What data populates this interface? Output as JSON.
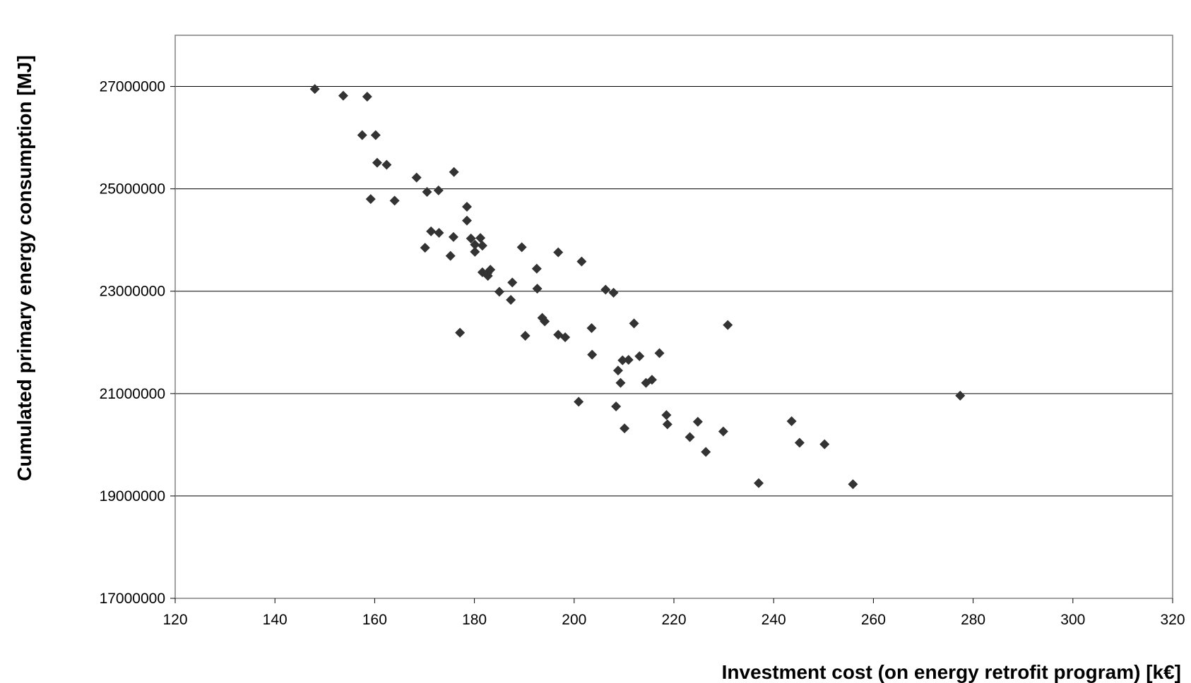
{
  "chart_data": {
    "type": "scatter",
    "title": "",
    "xlabel": "Investment cost (on energy retrofit program) [k€]",
    "ylabel": "Cumulated primary energy consumption [MJ]",
    "xlim": [
      120,
      320
    ],
    "ylim": [
      17000000,
      28000000
    ],
    "xticks": [
      120,
      140,
      160,
      180,
      200,
      220,
      240,
      260,
      280,
      300,
      320
    ],
    "yticks": [
      17000000,
      19000000,
      21000000,
      23000000,
      25000000,
      27000000
    ],
    "grid": "horizontal",
    "legend": "none",
    "marker": "diamond",
    "marker_color": "#333333",
    "series": [
      {
        "points": [
          [
            148,
            26950000
          ],
          [
            153.7,
            26820000
          ],
          [
            158.5,
            26800000
          ],
          [
            157.5,
            26050000
          ],
          [
            160.2,
            26050000
          ],
          [
            160.5,
            25510000
          ],
          [
            162.4,
            25470000
          ],
          [
            159.2,
            24800000
          ],
          [
            164.0,
            24770000
          ],
          [
            168.4,
            25220000
          ],
          [
            170.5,
            24940000
          ],
          [
            172.8,
            24970000
          ],
          [
            175.9,
            25330000
          ],
          [
            178.5,
            24650000
          ],
          [
            178.5,
            24380000
          ],
          [
            171.3,
            24170000
          ],
          [
            172.9,
            24140000
          ],
          [
            170.1,
            23850000
          ],
          [
            175.2,
            23690000
          ],
          [
            175.8,
            24060000
          ],
          [
            179.3,
            24030000
          ],
          [
            181.2,
            24040000
          ],
          [
            180.1,
            23910000
          ],
          [
            181.6,
            23890000
          ],
          [
            180.1,
            23770000
          ],
          [
            189.5,
            23860000
          ],
          [
            196.8,
            23760000
          ],
          [
            181.6,
            23370000
          ],
          [
            182.6,
            23350000
          ],
          [
            183.2,
            23420000
          ],
          [
            182.7,
            23300000
          ],
          [
            187.6,
            23170000
          ],
          [
            185.0,
            22990000
          ],
          [
            187.3,
            22830000
          ],
          [
            192.5,
            23440000
          ],
          [
            192.6,
            23050000
          ],
          [
            201.5,
            23580000
          ],
          [
            206.3,
            23030000
          ],
          [
            207.9,
            22970000
          ],
          [
            193.6,
            22480000
          ],
          [
            194.1,
            22410000
          ],
          [
            177.1,
            22190000
          ],
          [
            190.2,
            22130000
          ],
          [
            196.8,
            22150000
          ],
          [
            198.2,
            22100000
          ],
          [
            203.5,
            22280000
          ],
          [
            212.0,
            22370000
          ],
          [
            230.8,
            22340000
          ],
          [
            203.6,
            21760000
          ],
          [
            213.1,
            21730000
          ],
          [
            217.1,
            21790000
          ],
          [
            209.7,
            21650000
          ],
          [
            210.9,
            21660000
          ],
          [
            208.8,
            21450000
          ],
          [
            209.3,
            21210000
          ],
          [
            214.4,
            21210000
          ],
          [
            215.6,
            21270000
          ],
          [
            200.9,
            20840000
          ],
          [
            208.4,
            20750000
          ],
          [
            218.5,
            20580000
          ],
          [
            218.7,
            20400000
          ],
          [
            210.1,
            20320000
          ],
          [
            224.8,
            20450000
          ],
          [
            223.2,
            20150000
          ],
          [
            229.9,
            20260000
          ],
          [
            226.4,
            19860000
          ],
          [
            243.6,
            20460000
          ],
          [
            245.2,
            20040000
          ],
          [
            250.2,
            20010000
          ],
          [
            237.0,
            19250000
          ],
          [
            255.9,
            19230000
          ],
          [
            277.4,
            20960000
          ]
        ]
      }
    ]
  }
}
